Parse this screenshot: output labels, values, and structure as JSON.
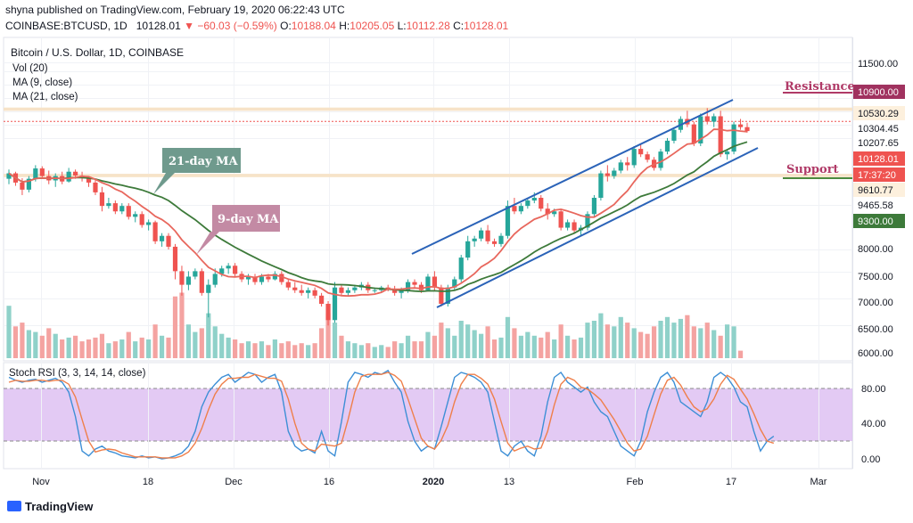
{
  "header": {
    "line1": "shyna published on TradingView.com, February 19, 2020 06:22:43 UTC",
    "symbol": "COINBASE:BTCUSD, 1D",
    "last": "10128.01",
    "change": "−60.03 (−0.59%)",
    "o_label": "O:",
    "o": "10188.04",
    "h_label": "H:",
    "h": "10205.05",
    "l_label": "L:",
    "l": "10112.28",
    "c_label": "C:",
    "c": "10128.01"
  },
  "legend": {
    "title": "Bitcoin / U.S. Dollar, 1D, COINBASE",
    "vol": "Vol (20)",
    "ma9": "MA (9, close)",
    "ma21": "MA (21, close)"
  },
  "stoch_label": "Stoch RSI (3, 3, 14, 14, close)",
  "footer": {
    "brand": "TradingView"
  },
  "colors": {
    "up": "#26a69a",
    "down": "#ef5350",
    "ma9": "#e8675d",
    "ma21": "#3d7a3a",
    "channel": "#2b63b8",
    "rsi_k": "#3d8fd6",
    "rsi_d": "#ef7f4a",
    "rsi_band": "#d9b8f0",
    "resistance": "#b03a67",
    "support": "#4b8a3e"
  },
  "chart_data": [
    {
      "type": "candlestick",
      "title": "Bitcoin / U.S. Dollar, 1D, COINBASE",
      "x_ticks": [
        "Nov",
        "18",
        "Dec",
        "16",
        "2020",
        "13",
        "Feb",
        "17",
        "Mar"
      ],
      "y_ticks": [
        "11500.00",
        "8000.00",
        "7500.00",
        "7000.00",
        "6500.00",
        "6000.00"
      ],
      "ylim": [
        5950,
        11850
      ],
      "price_levels": {
        "resistance_tag": "10900.00",
        "levels": [
          "10530.29",
          "10304.45",
          "10207.65",
          "10128.01",
          "17:37:20",
          "9610.77",
          "9465.58",
          "9300.00"
        ]
      },
      "annotations": {
        "ma21_callout": "21-day MA",
        "ma9_callout": "9-day MA",
        "resistance": "Resistance",
        "support": "Support"
      },
      "ohlc": [
        [
          9250,
          9420,
          9150,
          9350
        ],
        [
          9350,
          9380,
          9120,
          9180
        ],
        [
          9180,
          9260,
          8950,
          9050
        ],
        [
          9050,
          9300,
          9000,
          9250
        ],
        [
          9250,
          9500,
          9200,
          9440
        ],
        [
          9440,
          9480,
          9250,
          9300
        ],
        [
          9300,
          9400,
          9150,
          9220
        ],
        [
          9220,
          9350,
          9100,
          9300
        ],
        [
          9300,
          9380,
          9150,
          9200
        ],
        [
          9200,
          9450,
          9180,
          9380
        ],
        [
          9380,
          9420,
          9250,
          9310
        ],
        [
          9310,
          9380,
          9200,
          9260
        ],
        [
          9260,
          9300,
          9100,
          9180
        ],
        [
          9180,
          9250,
          8950,
          9000
        ],
        [
          9000,
          9100,
          8650,
          8750
        ],
        [
          8750,
          8900,
          8700,
          8800
        ],
        [
          8800,
          8850,
          8600,
          8650
        ],
        [
          8650,
          8800,
          8600,
          8750
        ],
        [
          8750,
          8800,
          8500,
          8550
        ],
        [
          8550,
          8650,
          8450,
          8600
        ],
        [
          8600,
          8650,
          8350,
          8400
        ],
        [
          8400,
          8500,
          8300,
          8450
        ],
        [
          8450,
          8480,
          8050,
          8100
        ],
        [
          8100,
          8250,
          8000,
          8200
        ],
        [
          8200,
          8250,
          7950,
          8000
        ],
        [
          8000,
          8050,
          7400,
          7550
        ],
        [
          7550,
          7650,
          7100,
          7300
        ],
        [
          7300,
          7550,
          7200,
          7450
        ],
        [
          7450,
          7600,
          7400,
          7550
        ],
        [
          7550,
          7600,
          7100,
          7150
        ],
        [
          7150,
          7400,
          6700,
          7300
        ],
        [
          7300,
          7600,
          7250,
          7500
        ],
        [
          7500,
          7650,
          7450,
          7600
        ],
        [
          7600,
          7700,
          7500,
          7650
        ],
        [
          7650,
          7700,
          7450,
          7500
        ],
        [
          7500,
          7550,
          7350,
          7400
        ],
        [
          7400,
          7500,
          7300,
          7450
        ],
        [
          7450,
          7500,
          7300,
          7350
        ],
        [
          7350,
          7500,
          7300,
          7450
        ],
        [
          7450,
          7500,
          7350,
          7400
        ],
        [
          7400,
          7550,
          7380,
          7500
        ],
        [
          7500,
          7550,
          7300,
          7350
        ],
        [
          7350,
          7400,
          7200,
          7250
        ],
        [
          7250,
          7350,
          7150,
          7200
        ],
        [
          7200,
          7300,
          7100,
          7150
        ],
        [
          7150,
          7250,
          7050,
          7200
        ],
        [
          7200,
          7250,
          7050,
          7100
        ],
        [
          7100,
          7150,
          6900,
          6950
        ],
        [
          6950,
          7000,
          6550,
          6650
        ],
        [
          6650,
          7350,
          6600,
          7250
        ],
        [
          7250,
          7300,
          7100,
          7150
        ],
        [
          7150,
          7250,
          7100,
          7200
        ],
        [
          7200,
          7300,
          7150,
          7250
        ],
        [
          7250,
          7350,
          7200,
          7300
        ],
        [
          7300,
          7350,
          7150,
          7200
        ],
        [
          7200,
          7250,
          7150,
          7200
        ],
        [
          7200,
          7280,
          7150,
          7250
        ],
        [
          7250,
          7300,
          7180,
          7230
        ],
        [
          7230,
          7280,
          7100,
          7150
        ],
        [
          7150,
          7250,
          7050,
          7200
        ],
        [
          7200,
          7400,
          7150,
          7350
        ],
        [
          7350,
          7400,
          7250,
          7300
        ],
        [
          7300,
          7350,
          7150,
          7200
        ],
        [
          7200,
          7500,
          7180,
          7450
        ],
        [
          7450,
          7550,
          7200,
          7250
        ],
        [
          7250,
          7300,
          6900,
          6950
        ],
        [
          6950,
          7300,
          6900,
          7250
        ],
        [
          7250,
          7450,
          7200,
          7400
        ],
        [
          7400,
          7850,
          7350,
          7800
        ],
        [
          7800,
          8200,
          7750,
          8100
        ],
        [
          8100,
          8200,
          8000,
          8150
        ],
        [
          8150,
          8350,
          8100,
          8300
        ],
        [
          8300,
          8400,
          8050,
          8100
        ],
        [
          8100,
          8150,
          8000,
          8050
        ],
        [
          8050,
          8250,
          8000,
          8200
        ],
        [
          8200,
          8850,
          8150,
          8750
        ],
        [
          8750,
          8900,
          8600,
          8650
        ],
        [
          8650,
          8800,
          8600,
          8750
        ],
        [
          8750,
          8900,
          8700,
          8850
        ],
        [
          8850,
          9000,
          8800,
          8900
        ],
        [
          8900,
          8950,
          8650,
          8700
        ],
        [
          8700,
          8800,
          8500,
          8600
        ],
        [
          8600,
          8700,
          8550,
          8650
        ],
        [
          8650,
          8700,
          8300,
          8350
        ],
        [
          8350,
          8500,
          8300,
          8450
        ],
        [
          8450,
          8500,
          8250,
          8300
        ],
        [
          8300,
          8400,
          8200,
          8350
        ],
        [
          8350,
          8650,
          8300,
          8600
        ],
        [
          8600,
          8950,
          8550,
          8900
        ],
        [
          8900,
          9400,
          8850,
          9350
        ],
        [
          9350,
          9500,
          9200,
          9300
        ],
        [
          9300,
          9450,
          9250,
          9400
        ],
        [
          9400,
          9600,
          9350,
          9550
        ],
        [
          9550,
          9650,
          9400,
          9500
        ],
        [
          9500,
          9850,
          9450,
          9800
        ],
        [
          9800,
          9900,
          9650,
          9700
        ],
        [
          9700,
          9750,
          9550,
          9600
        ],
        [
          9600,
          9650,
          9400,
          9450
        ],
        [
          9450,
          9800,
          9400,
          9750
        ],
        [
          9750,
          10000,
          9700,
          9950
        ],
        [
          9950,
          10200,
          9900,
          10150
        ],
        [
          10150,
          10400,
          10100,
          10350
        ],
        [
          10350,
          10500,
          10200,
          10250
        ],
        [
          10250,
          10300,
          9850,
          9900
        ],
        [
          9900,
          10450,
          9850,
          10400
        ],
        [
          10400,
          10550,
          10250,
          10300
        ],
        [
          10300,
          10450,
          10200,
          10400
        ],
        [
          10400,
          10500,
          9650,
          9700
        ],
        [
          9700,
          9800,
          9600,
          9750
        ],
        [
          9750,
          10300,
          9700,
          10250
        ],
        [
          10250,
          10350,
          10150,
          10200
        ],
        [
          10200,
          10280,
          10100,
          10128
        ]
      ],
      "volume": [
        140,
        85,
        95,
        75,
        70,
        60,
        80,
        65,
        50,
        55,
        60,
        45,
        50,
        55,
        65,
        40,
        45,
        50,
        70,
        45,
        55,
        50,
        90,
        60,
        55,
        165,
        175,
        90,
        70,
        80,
        120,
        85,
        65,
        55,
        50,
        40,
        45,
        40,
        45,
        35,
        50,
        40,
        45,
        35,
        40,
        35,
        40,
        80,
        120,
        95,
        60,
        45,
        40,
        35,
        40,
        30,
        35,
        30,
        45,
        40,
        60,
        45,
        45,
        70,
        60,
        95,
        80,
        60,
        100,
        90,
        75,
        65,
        85,
        50,
        55,
        110,
        80,
        60,
        70,
        60,
        55,
        70,
        50,
        90,
        60,
        50,
        55,
        95,
        100,
        120,
        90,
        85,
        110,
        95,
        80,
        70,
        65,
        85,
        100,
        110,
        95,
        105,
        115,
        85,
        80,
        95,
        75,
        60,
        90,
        85,
        20
      ],
      "ma9_hint": "9-period moving average",
      "ma21_hint": "21-period moving average"
    },
    {
      "type": "line",
      "title": "Stoch RSI (3, 3, 14, 14, close)",
      "y_ticks": [
        "80.00",
        "40.00",
        "0.00"
      ],
      "ylim": [
        -8,
        100
      ],
      "band": [
        20,
        80
      ],
      "k": [
        85,
        82,
        80,
        82,
        83,
        80,
        82,
        84,
        80,
        70,
        45,
        10,
        5,
        12,
        15,
        10,
        8,
        5,
        4,
        3,
        5,
        3,
        4,
        2,
        3,
        5,
        8,
        15,
        30,
        55,
        70,
        78,
        85,
        88,
        80,
        85,
        90,
        88,
        80,
        85,
        88,
        70,
        30,
        15,
        10,
        12,
        8,
        30,
        10,
        5,
        40,
        80,
        90,
        88,
        85,
        90,
        88,
        92,
        80,
        70,
        40,
        20,
        10,
        15,
        12,
        35,
        60,
        85,
        90,
        88,
        85,
        80,
        70,
        40,
        10,
        5,
        15,
        20,
        10,
        5,
        25,
        60,
        85,
        90,
        80,
        75,
        70,
        75,
        60,
        50,
        45,
        30,
        15,
        10,
        5,
        20,
        50,
        70,
        85,
        90,
        80,
        60,
        55,
        50,
        45,
        60,
        85,
        90,
        85,
        75,
        60,
        55,
        30,
        10,
        20,
        25
      ],
      "d": [
        80,
        82,
        81,
        81,
        82,
        82,
        81,
        82,
        82,
        78,
        65,
        42,
        20,
        9,
        11,
        12,
        11,
        8,
        6,
        4,
        4,
        4,
        4,
        3,
        3,
        3,
        5,
        9,
        18,
        33,
        52,
        68,
        78,
        84,
        84,
        85,
        85,
        88,
        86,
        84,
        84,
        81,
        63,
        38,
        18,
        12,
        10,
        17,
        16,
        15,
        18,
        42,
        70,
        86,
        88,
        88,
        88,
        90,
        87,
        81,
        63,
        43,
        23,
        15,
        12,
        21,
        36,
        60,
        78,
        88,
        88,
        84,
        78,
        63,
        40,
        18,
        10,
        13,
        15,
        12,
        13,
        30,
        57,
        78,
        85,
        82,
        75,
        73,
        68,
        62,
        52,
        42,
        30,
        18,
        10,
        12,
        25,
        47,
        68,
        82,
        85,
        77,
        65,
        55,
        50,
        53,
        63,
        78,
        87,
        83,
        73,
        63,
        48,
        32,
        20,
        18
      ]
    }
  ]
}
